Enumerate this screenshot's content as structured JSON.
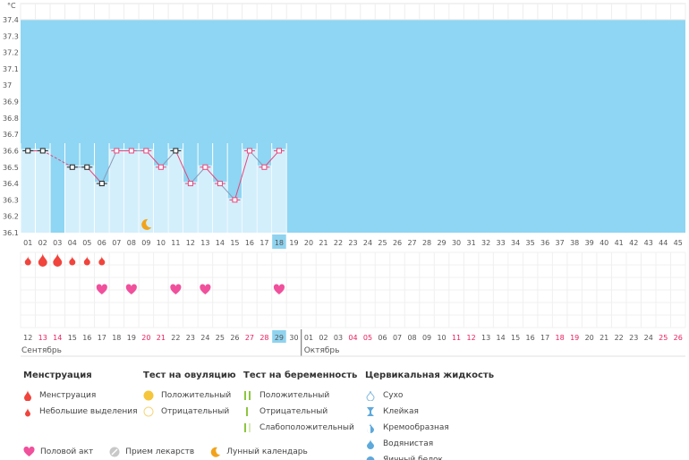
{
  "chart_data": {
    "type": "line",
    "unit_label": "°C",
    "y_ticks": [
      "37.4",
      "37.3",
      "37.2",
      "37.1",
      "37",
      "36.9",
      "36.8",
      "36.7",
      "36.6",
      "36.5",
      "36.4",
      "36.3",
      "36.2",
      "36.1"
    ],
    "ylim": [
      36.1,
      37.4
    ],
    "cycle_days": [
      "01",
      "02",
      "03",
      "04",
      "05",
      "06",
      "07",
      "08",
      "09",
      "10",
      "11",
      "12",
      "13",
      "14",
      "15",
      "16",
      "17",
      "18",
      "19",
      "20",
      "21",
      "22",
      "23",
      "24",
      "25",
      "26",
      "27",
      "28",
      "29",
      "30",
      "31",
      "32",
      "33",
      "34",
      "35",
      "36",
      "37",
      "38",
      "39",
      "40",
      "41",
      "42",
      "43",
      "44",
      "45"
    ],
    "current_day": "18",
    "temperatures": [
      36.6,
      36.6,
      null,
      36.5,
      36.5,
      36.4,
      36.6,
      36.6,
      36.6,
      36.5,
      36.6,
      36.4,
      36.5,
      36.4,
      36.3,
      36.6,
      36.5,
      36.6
    ],
    "dashed_after_index": 1,
    "black_markers": [
      0,
      1,
      3,
      4,
      5,
      10
    ],
    "moon_day_index": 8,
    "menstruation": [
      {
        "day": 0,
        "kind": "small"
      },
      {
        "day": 1,
        "kind": "large"
      },
      {
        "day": 2,
        "kind": "large"
      },
      {
        "day": 3,
        "kind": "small"
      },
      {
        "day": 4,
        "kind": "small"
      },
      {
        "day": 5,
        "kind": "small"
      }
    ],
    "intercourse_days": [
      5,
      7,
      10,
      12,
      17
    ],
    "calendar_dates": [
      "12",
      "13",
      "14",
      "15",
      "16",
      "17",
      "18",
      "19",
      "20",
      "21",
      "22",
      "23",
      "24",
      "25",
      "26",
      "27",
      "28",
      "29",
      "30",
      "01",
      "02",
      "03",
      "04",
      "05",
      "06",
      "07",
      "08",
      "09",
      "10",
      "11",
      "12",
      "13",
      "14",
      "15",
      "16",
      "17",
      "18",
      "19",
      "20",
      "21",
      "22",
      "23",
      "24",
      "25",
      "26"
    ],
    "weekend_indexes": [
      1,
      2,
      8,
      9,
      15,
      16,
      22,
      23,
      29,
      30,
      36,
      37,
      43,
      44
    ],
    "today_date_index": 17,
    "month_labels": [
      {
        "label": "Сентябрь",
        "start": 0
      },
      {
        "label": "Октябрь",
        "start": 19
      }
    ],
    "colors": {
      "chart_bg": "#8ed6f3",
      "bar": "#d4effc",
      "line": "#e8457a",
      "line2": "#8a9ab8",
      "weekend": "#e8205e",
      "today": "#8fd3ef",
      "drop": "#f0443c",
      "heart": "#f0509c"
    }
  },
  "legend": {
    "menstruation": {
      "title": "Менструация",
      "items": [
        "Менструация",
        "Небольшие выделения"
      ]
    },
    "ovulation_test": {
      "title": "Тест на овуляцию",
      "items": [
        "Положительный",
        "Отрицательный"
      ]
    },
    "pregnancy_test": {
      "title": "Тест на беременность",
      "items": [
        "Положительный",
        "Отрицательный",
        "Слабоположительный"
      ]
    },
    "cervical_fluid": {
      "title": "Цервикальная жидкость",
      "items": [
        "Сухо",
        "Клейкая",
        "Кремообразная",
        "Водянистая",
        "Яичный белок"
      ]
    },
    "bottom": {
      "intercourse": "Половой акт",
      "medication": "Прием лекарств",
      "lunar": "Лунный календарь"
    }
  }
}
